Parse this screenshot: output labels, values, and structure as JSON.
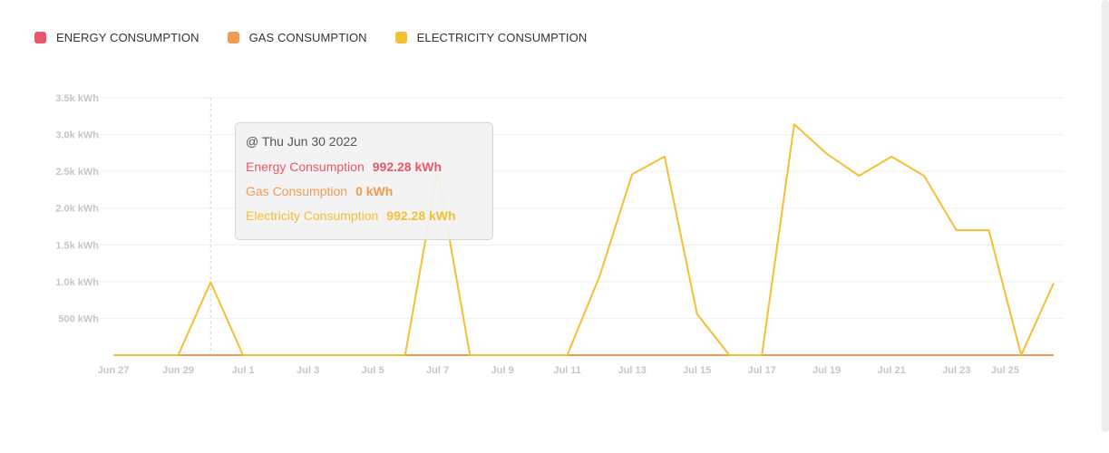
{
  "legend": {
    "items": [
      {
        "label": "ENERGY CONSUMPTION",
        "color": "#e8576b"
      },
      {
        "label": "GAS CONSUMPTION",
        "color": "#f09a54"
      },
      {
        "label": "ELECTRICITY CONSUMPTION",
        "color": "#f5bf33"
      }
    ]
  },
  "tooltip": {
    "title": "@ Thu Jun 30 2022",
    "rows": [
      {
        "label": "Energy Consumption",
        "value": "992.28 kWh",
        "color": "#e8576b"
      },
      {
        "label": "Gas Consumption",
        "value": "0 kWh",
        "color": "#f09a54"
      },
      {
        "label": "Electricity Consumption",
        "value": "992.28 kWh",
        "color": "#f5bf33"
      }
    ]
  },
  "chart_data": {
    "type": "line",
    "title": "",
    "xlabel": "",
    "ylabel": "",
    "ylim": [
      0,
      3500
    ],
    "y_ticks": [
      "500 kWh",
      "1.0k kWh",
      "1.5k kWh",
      "2.0k kWh",
      "2.5k kWh",
      "3.0k kWh",
      "3.5k kWh"
    ],
    "y_tick_values": [
      500,
      1000,
      1500,
      2000,
      2500,
      3000,
      3500
    ],
    "x_ticks": [
      "Jun 27",
      "Jun 29",
      "Jul 1",
      "Jul 3",
      "Jul 5",
      "Jul 7",
      "Jul 9",
      "Jul 11",
      "Jul 13",
      "Jul 15",
      "Jul 17",
      "Jul 19",
      "Jul 21",
      "Jul 23",
      "Jul 25"
    ],
    "x_tick_days": [
      0,
      2,
      4,
      6,
      8,
      10,
      12,
      14,
      16,
      18,
      20,
      22,
      24,
      26,
      27.5
    ],
    "grid": true,
    "legend_position": "top-left",
    "x_dates": [
      "Jun 27",
      "Jun 28",
      "Jun 29",
      "Jun 30",
      "Jul 1",
      "Jul 2",
      "Jul 3",
      "Jul 4",
      "Jul 5",
      "Jul 6",
      "Jul 7",
      "Jul 8",
      "Jul 9",
      "Jul 10",
      "Jul 11",
      "Jul 12",
      "Jul 13",
      "Jul 14",
      "Jul 15",
      "Jul 16",
      "Jul 17",
      "Jul 18",
      "Jul 19",
      "Jul 20",
      "Jul 21",
      "Jul 22",
      "Jul 23",
      "Jul 24",
      "Jul 25",
      "Jul 26"
    ],
    "highlight": "Jun 30",
    "series": [
      {
        "name": "ELECTRICITY CONSUMPTION",
        "color": "#f5bf33",
        "values": [
          0,
          0,
          0,
          992.28,
          0,
          0,
          0,
          0,
          0,
          0,
          2500,
          0,
          0,
          0,
          0,
          1080,
          2460,
          2700,
          560,
          0,
          0,
          3140,
          2740,
          2440,
          2700,
          2440,
          1700,
          1700,
          0,
          980
        ]
      },
      {
        "name": "GAS CONSUMPTION",
        "color": "#f09a54",
        "values": [
          0,
          0,
          0,
          0,
          0,
          0,
          0,
          0,
          0,
          0,
          0,
          0,
          0,
          0,
          0,
          0,
          0,
          0,
          0,
          0,
          0,
          0,
          0,
          0,
          0,
          0,
          0,
          0,
          0,
          0
        ]
      }
    ]
  }
}
